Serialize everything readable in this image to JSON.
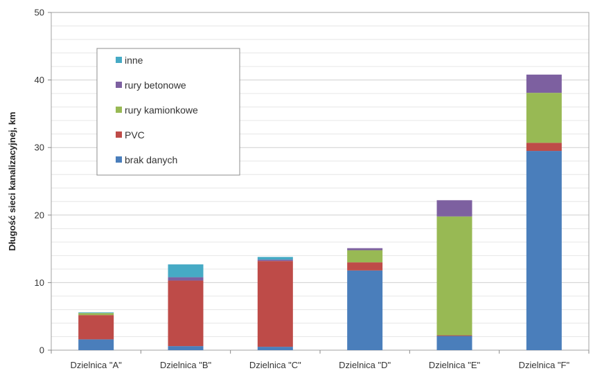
{
  "chart_data": {
    "type": "bar",
    "stacked": true,
    "categories": [
      "Dzielnica \"A\"",
      "Dzielnica \"B\"",
      "Dzielnica \"C\"",
      "Dzielnica \"D\"",
      "Dzielnica \"E\"",
      "Dzielnica \"F\""
    ],
    "series": [
      {
        "name": "brak danych",
        "color": "#4a7ebb",
        "values": [
          1.6,
          0.6,
          0.5,
          11.8,
          2.1,
          29.5
        ]
      },
      {
        "name": "PVC",
        "color": "#be4b48",
        "values": [
          3.6,
          9.7,
          12.7,
          1.2,
          0.1,
          1.2
        ]
      },
      {
        "name": "rury kamionkowe",
        "color": "#98b954",
        "values": [
          0.3,
          0.0,
          0.0,
          1.8,
          17.6,
          7.4
        ]
      },
      {
        "name": "rury betonowe",
        "color": "#7d60a0",
        "values": [
          0.0,
          0.5,
          0.2,
          0.3,
          2.4,
          2.7
        ]
      },
      {
        "name": "inne",
        "color": "#46aac5",
        "values": [
          0.1,
          1.9,
          0.4,
          0.0,
          0.0,
          0.0
        ]
      }
    ],
    "legend_order": [
      "inne",
      "rury betonowe",
      "rury kamionkowe",
      "PVC",
      "brak danych"
    ],
    "title": "",
    "xlabel": "",
    "ylabel": "Długość sieci kanalizacyjnej, km",
    "ylim": [
      0,
      50
    ],
    "yticks": [
      0,
      10,
      20,
      30,
      40,
      50
    ],
    "grid": true,
    "legend_position": "top-left"
  }
}
